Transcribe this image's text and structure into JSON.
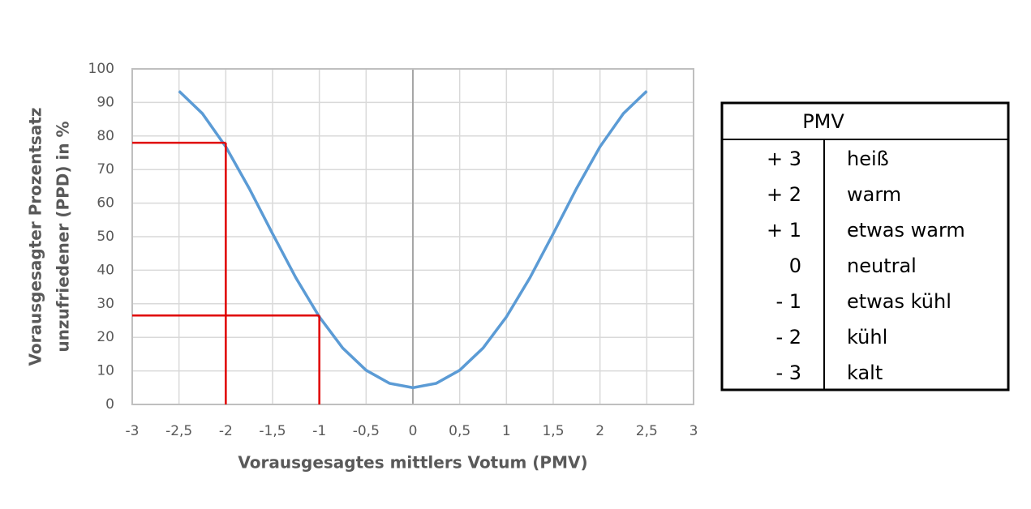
{
  "chart_data": {
    "type": "line",
    "x_label": "Vorausgesagtes mittlers Votum (PMV)",
    "y_label": [
      "Vorausgesagter Prozentsatz",
      "unzufriedener (PPD) in %"
    ],
    "x": [
      -2.5,
      -2.25,
      -2,
      -1.75,
      -1.5,
      -1.25,
      -1,
      -0.75,
      -0.5,
      -0.25,
      0,
      0.25,
      0.5,
      0.75,
      1,
      1.25,
      1.5,
      1.75,
      2,
      2.25,
      2.5
    ],
    "values": [
      93.4,
      86.7,
      76.8,
      64.4,
      50.9,
      37.7,
      26.1,
      16.8,
      10.2,
      6.3,
      5,
      6.3,
      10.2,
      16.8,
      26.1,
      37.7,
      50.9,
      64.4,
      76.8,
      86.7,
      93.4
    ],
    "color": "#5b9bd5",
    "reference_lines": [
      {
        "x": -2,
        "y": 78
      },
      {
        "x": -1,
        "y": 26.5
      }
    ],
    "reference_color": "#e00000",
    "xlim": [
      -3,
      3
    ],
    "xticks": [
      -3,
      {
        "value": -2.5,
        "label": "-2,5"
      },
      -2,
      {
        "value": -1.5,
        "label": "-1,5"
      },
      -1,
      {
        "value": -0.5,
        "label": "-0,5"
      },
      0,
      {
        "value": 0.5,
        "label": "0,5"
      },
      1,
      {
        "value": 1.5,
        "label": "1,5"
      },
      2,
      {
        "value": 2.5,
        "label": "2,5"
      },
      3
    ],
    "ylim": [
      0,
      100
    ],
    "yticks": [
      0,
      10,
      20,
      30,
      40,
      50,
      60,
      70,
      80,
      90,
      100
    ],
    "grid": true
  },
  "table": {
    "header": "PMV",
    "rows": [
      [
        "+ 3",
        "heiß"
      ],
      [
        "+ 2",
        "warm"
      ],
      [
        "+ 1",
        "etwas warm"
      ],
      [
        "0",
        "neutral"
      ],
      [
        "- 1",
        "etwas kühl"
      ],
      [
        "- 2",
        "kühl"
      ],
      [
        "- 3",
        "kalt"
      ]
    ]
  }
}
